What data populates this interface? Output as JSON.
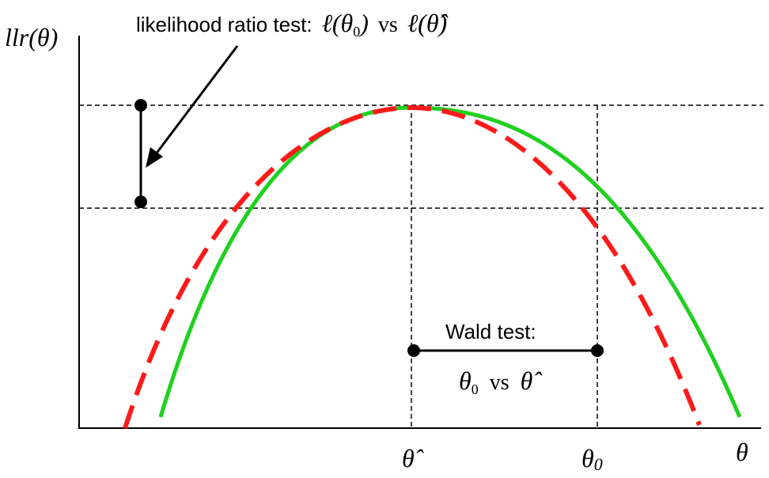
{
  "axes": {
    "y_label": "llr(θ)",
    "x_label": "θ",
    "x_tick_mle": "θ̂",
    "x_tick_null": "θ",
    "x_tick_null_sub": "0"
  },
  "annotations": {
    "lrt_label": "likelihood ratio test:",
    "lrt_expr_a": "ℓ(θ",
    "lrt_expr_a_sub": "0",
    "lrt_expr_a_close": ")",
    "lrt_vs": "vs",
    "lrt_expr_b": "ℓ(θ̂)",
    "wald_label": "Wald test:",
    "wald_expr_a": "θ",
    "wald_expr_a_sub": "0",
    "wald_vs": "vs",
    "wald_expr_b": "θ̂"
  },
  "colors": {
    "true_curve": "#1fd01f",
    "quadratic_approx": "#ff1a1a",
    "guides": "#000000"
  }
}
